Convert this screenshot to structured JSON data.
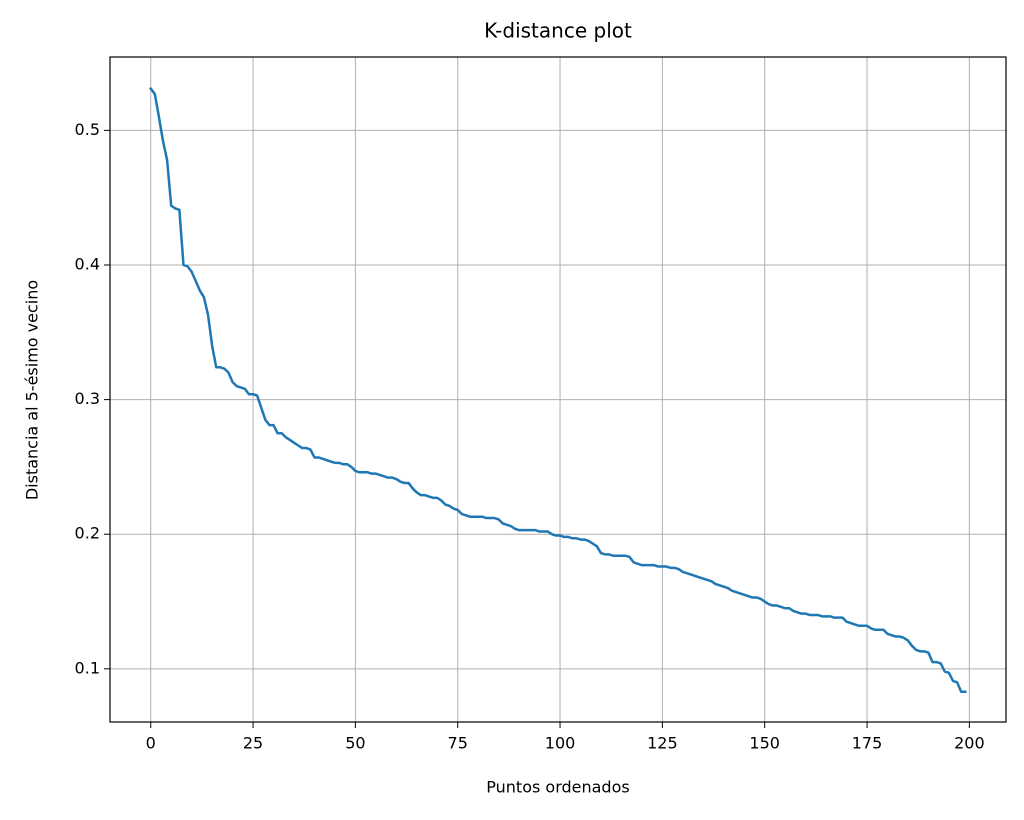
{
  "chart_data": {
    "type": "line",
    "title": "K-distance plot",
    "xlabel": "Puntos ordenados",
    "ylabel": "Distancia al 5-ésimo vecino",
    "x": [
      0,
      1,
      2,
      3,
      4,
      5,
      6,
      7,
      8,
      9,
      10,
      11,
      12,
      13,
      14,
      15,
      16,
      17,
      18,
      19,
      20,
      21,
      22,
      23,
      24,
      25,
      26,
      27,
      28,
      29,
      30,
      31,
      32,
      33,
      34,
      35,
      36,
      37,
      38,
      39,
      40,
      41,
      42,
      43,
      44,
      45,
      46,
      47,
      48,
      49,
      50,
      51,
      52,
      53,
      54,
      55,
      56,
      57,
      58,
      59,
      60,
      61,
      62,
      63,
      64,
      65,
      66,
      67,
      68,
      69,
      70,
      71,
      72,
      73,
      74,
      75,
      76,
      77,
      78,
      79,
      80,
      81,
      82,
      83,
      84,
      85,
      86,
      87,
      88,
      89,
      90,
      91,
      92,
      93,
      94,
      95,
      96,
      97,
      98,
      99,
      100,
      101,
      102,
      103,
      104,
      105,
      106,
      107,
      108,
      109,
      110,
      111,
      112,
      113,
      114,
      115,
      116,
      117,
      118,
      119,
      120,
      121,
      122,
      123,
      124,
      125,
      126,
      127,
      128,
      129,
      130,
      131,
      132,
      133,
      134,
      135,
      136,
      137,
      138,
      139,
      140,
      141,
      142,
      143,
      144,
      145,
      146,
      147,
      148,
      149,
      150,
      151,
      152,
      153,
      154,
      155,
      156,
      157,
      158,
      159,
      160,
      161,
      162,
      163,
      164,
      165,
      166,
      167,
      168,
      169,
      170,
      171,
      172,
      173,
      174,
      175,
      176,
      177,
      178,
      179,
      180,
      181,
      182,
      183,
      184,
      185,
      186,
      187,
      188,
      189,
      190,
      191,
      192,
      193,
      194,
      195,
      196,
      197,
      198,
      199
    ],
    "values": [
      0.531,
      0.527,
      0.51,
      0.492,
      0.478,
      0.444,
      0.442,
      0.441,
      0.4,
      0.399,
      0.395,
      0.388,
      0.381,
      0.376,
      0.363,
      0.34,
      0.324,
      0.324,
      0.323,
      0.32,
      0.313,
      0.31,
      0.309,
      0.308,
      0.304,
      0.304,
      0.303,
      0.294,
      0.285,
      0.281,
      0.281,
      0.275,
      0.275,
      0.272,
      0.27,
      0.268,
      0.266,
      0.264,
      0.264,
      0.263,
      0.257,
      0.257,
      0.256,
      0.255,
      0.254,
      0.253,
      0.253,
      0.252,
      0.252,
      0.25,
      0.247,
      0.246,
      0.246,
      0.246,
      0.245,
      0.245,
      0.244,
      0.243,
      0.242,
      0.242,
      0.241,
      0.239,
      0.238,
      0.238,
      0.234,
      0.231,
      0.229,
      0.229,
      0.228,
      0.227,
      0.227,
      0.225,
      0.222,
      0.221,
      0.219,
      0.218,
      0.215,
      0.214,
      0.213,
      0.213,
      0.213,
      0.213,
      0.212,
      0.212,
      0.212,
      0.211,
      0.208,
      0.207,
      0.206,
      0.204,
      0.203,
      0.203,
      0.203,
      0.203,
      0.203,
      0.202,
      0.202,
      0.202,
      0.2,
      0.199,
      0.199,
      0.198,
      0.198,
      0.197,
      0.197,
      0.196,
      0.196,
      0.195,
      0.193,
      0.191,
      0.186,
      0.185,
      0.185,
      0.184,
      0.184,
      0.184,
      0.184,
      0.183,
      0.179,
      0.178,
      0.177,
      0.177,
      0.177,
      0.177,
      0.176,
      0.176,
      0.176,
      0.175,
      0.175,
      0.174,
      0.172,
      0.171,
      0.17,
      0.169,
      0.168,
      0.167,
      0.166,
      0.165,
      0.163,
      0.162,
      0.161,
      0.16,
      0.158,
      0.157,
      0.156,
      0.155,
      0.154,
      0.153,
      0.153,
      0.152,
      0.15,
      0.148,
      0.147,
      0.147,
      0.146,
      0.145,
      0.145,
      0.143,
      0.142,
      0.141,
      0.141,
      0.14,
      0.14,
      0.14,
      0.139,
      0.139,
      0.139,
      0.138,
      0.138,
      0.138,
      0.135,
      0.134,
      0.133,
      0.132,
      0.132,
      0.132,
      0.13,
      0.129,
      0.129,
      0.129,
      0.126,
      0.125,
      0.124,
      0.124,
      0.123,
      0.121,
      0.117,
      0.114,
      0.113,
      0.113,
      0.112,
      0.105,
      0.105,
      0.104,
      0.098,
      0.097,
      0.091,
      0.09,
      0.083,
      0.083
    ],
    "color": "#1f77b4",
    "xlim": [
      -9.95,
      208.95
    ],
    "xticks": [
      0,
      25,
      50,
      75,
      100,
      125,
      150,
      175,
      200
    ],
    "ylim": [
      0.0605,
      0.5545
    ],
    "yticks": [
      0.1,
      0.2,
      0.3,
      0.4,
      0.5
    ],
    "grid": true
  }
}
